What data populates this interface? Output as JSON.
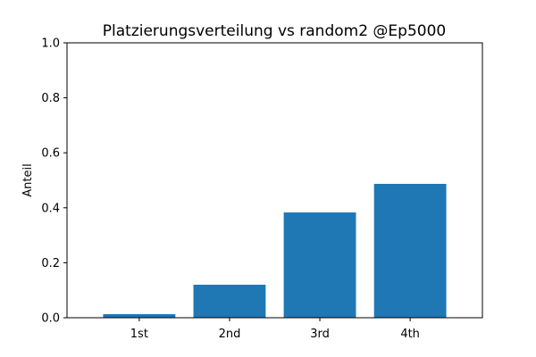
{
  "chart_data": {
    "type": "bar",
    "title": "Platzierungsverteilung vs random2 @Ep5000",
    "xlabel": "",
    "ylabel": "Anteil",
    "categories": [
      "1st",
      "2nd",
      "3rd",
      "4th"
    ],
    "values": [
      0.013,
      0.12,
      0.383,
      0.487
    ],
    "ylim": [
      0.0,
      1.0
    ],
    "yticks": [
      "0.0",
      "0.2",
      "0.4",
      "0.6",
      "0.8",
      "1.0"
    ],
    "grid": false,
    "bar_color": "#1f77b4"
  }
}
